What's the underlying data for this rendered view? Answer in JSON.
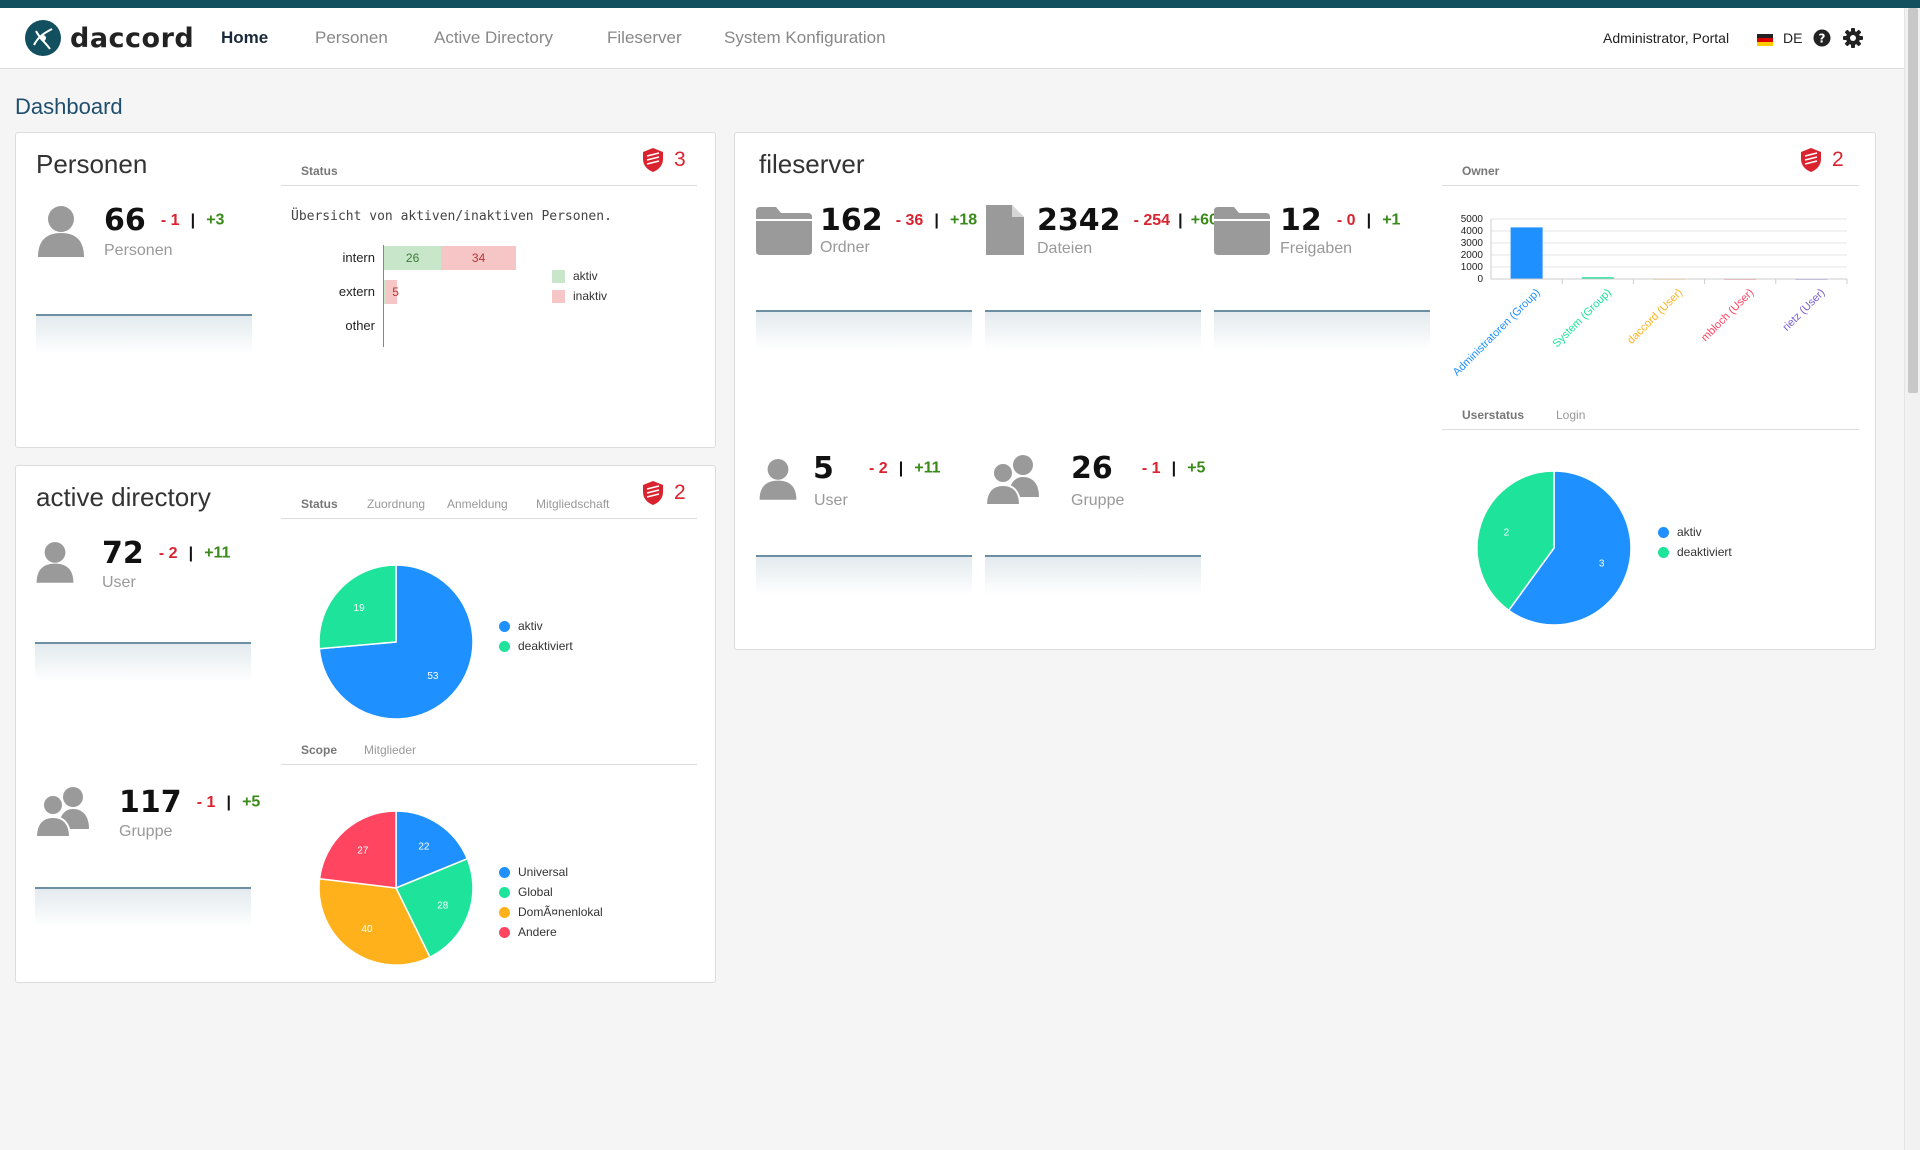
{
  "app": {
    "logo_text": "daccord",
    "logo_icon": "daccord-logo-icon"
  },
  "nav": {
    "items": [
      {
        "label": "Home",
        "active": true
      },
      {
        "label": "Personen"
      },
      {
        "label": "Active Directory"
      },
      {
        "label": "Fileserver"
      },
      {
        "label": "System Konfiguration"
      }
    ],
    "user": "Administrator, Portal",
    "language": "DE",
    "icons": [
      "flag-de-icon",
      "help-icon",
      "gear-icon"
    ]
  },
  "page_title": "Dashboard",
  "colors": {
    "accent": "#13505f",
    "alert": "#d9232e",
    "positive": "#3a8a1a",
    "blue": "#1e90ff",
    "green": "#1ee39a",
    "orange": "#ffb11b",
    "red": "#ff4560"
  },
  "personen": {
    "title": "Personen",
    "alerts": "3",
    "stat": {
      "value": "66",
      "minus": "- 1",
      "plus": "+3",
      "label": "Personen"
    },
    "tabs": [
      "Status"
    ],
    "description": "Übersicht von aktiven/inaktiven Personen.",
    "chart_data": {
      "type": "bar",
      "orientation": "horizontal",
      "stacked": true,
      "categories": [
        "intern",
        "extern",
        "other"
      ],
      "series": [
        {
          "name": "aktiv",
          "values": [
            26,
            1,
            0
          ],
          "color": "#c8e6c9"
        },
        {
          "name": "inaktiv",
          "values": [
            34,
            5,
            0
          ],
          "color": "#f6c6c6"
        }
      ],
      "legend": "right"
    }
  },
  "active_directory": {
    "title": "active directory",
    "alerts": "2",
    "user_stat": {
      "value": "72",
      "minus": "- 2",
      "plus": "+11",
      "label": "User"
    },
    "group_stat": {
      "value": "117",
      "minus": "- 1",
      "plus": "+5",
      "label": "Gruppe"
    },
    "tabs_top": [
      "Status",
      "Zuordnung",
      "Anmeldung",
      "Mitgliedschaft"
    ],
    "tabs_bottom": [
      "Scope",
      "Mitglieder"
    ],
    "chart_data": [
      {
        "type": "pie",
        "categories": [
          "aktiv",
          "deaktiviert"
        ],
        "values": [
          53,
          19
        ],
        "colors": [
          "#1e90ff",
          "#1ee39a"
        ],
        "legend": "right"
      },
      {
        "type": "pie",
        "categories": [
          "Universal",
          "Global",
          "DomÃ¤nenlokal",
          "Andere"
        ],
        "values": [
          22,
          28,
          40,
          27
        ],
        "colors": [
          "#1e90ff",
          "#1ee39a",
          "#ffb11b",
          "#ff4560"
        ],
        "legend": "right"
      }
    ]
  },
  "fileserver": {
    "title": "fileserver",
    "alerts": "2",
    "stats": [
      {
        "value": "162",
        "minus": "- 36",
        "plus": "+18",
        "label": "Ordner",
        "icon": "folder-icon"
      },
      {
        "value": "2342",
        "minus": "- 254",
        "plus": "+60",
        "label": "Dateien",
        "icon": "file-icon"
      },
      {
        "value": "12",
        "minus": "- 0",
        "plus": "+1",
        "label": "Freigaben",
        "icon": "folder-icon"
      },
      {
        "value": "5",
        "minus": "- 2",
        "plus": "+11",
        "label": "User",
        "icon": "user-icon"
      },
      {
        "value": "26",
        "minus": "- 1",
        "plus": "+5",
        "label": "Gruppe",
        "icon": "group-icon"
      }
    ],
    "owner_tabs": [
      "Owner"
    ],
    "user_tabs": [
      "Userstatus",
      "Login"
    ],
    "chart_data": [
      {
        "type": "bar",
        "title": "Owner",
        "categories": [
          "Administratoren (Group)",
          "System (Group)",
          "daccord (User)",
          "mbloch (User)",
          "rietz (User)"
        ],
        "values": [
          4300,
          150,
          10,
          5,
          5
        ],
        "category_colors": [
          "#1e90ff",
          "#1ee39a",
          "#ffb11b",
          "#ff4560",
          "#775dd0"
        ],
        "y_ticks": [
          "5000",
          "4000",
          "3000",
          "2000",
          "1000",
          "0"
        ],
        "ylim": [
          0,
          5000
        ]
      },
      {
        "type": "pie",
        "categories": [
          "aktiv",
          "deaktiviert"
        ],
        "values": [
          3,
          2
        ],
        "colors": [
          "#1e90ff",
          "#1ee39a"
        ],
        "legend": "right"
      }
    ]
  }
}
